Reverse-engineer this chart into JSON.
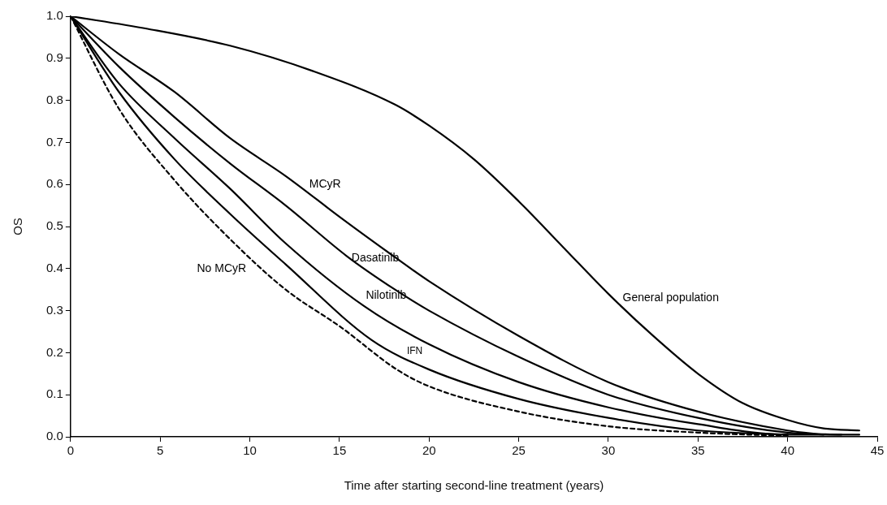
{
  "chart_data": {
    "type": "line",
    "xlabel": "Time after starting second-line treatment (years)",
    "ylabel": "OS",
    "xlim": [
      0,
      45
    ],
    "ylim": [
      0,
      1
    ],
    "xticks": [
      0,
      5,
      10,
      15,
      20,
      25,
      30,
      35,
      40,
      45
    ],
    "yticks": [
      {
        "value": 0,
        "label": "0.0"
      },
      0.1,
      0.2,
      0.3,
      0.4,
      0.5,
      0.6,
      0.7,
      0.8,
      0.9,
      {
        "value": 1,
        "label": "1.0"
      }
    ],
    "grid": false,
    "legend": false,
    "marker": "none",
    "series": [
      {
        "name": "General population",
        "color": "#000000",
        "line_style": "solid",
        "x": [
          0,
          4.3,
          8.9,
          13.5,
          18.1,
          20,
          22.5,
          25,
          27.5,
          30,
          32.5,
          35,
          37.5,
          40,
          42,
          44
        ],
        "values": [
          1,
          0.97,
          0.93,
          0.87,
          0.79,
          0.74,
          0.66,
          0.56,
          0.45,
          0.34,
          0.24,
          0.15,
          0.08,
          0.04,
          0.02,
          0.015
        ]
      },
      {
        "name": "MCyR",
        "color": "#000000",
        "line_style": "solid",
        "x": [
          0,
          2.7,
          5.8,
          8.9,
          12,
          15.1,
          18,
          20,
          25,
          30,
          35,
          40,
          42
        ],
        "values": [
          1,
          0.91,
          0.82,
          0.71,
          0.62,
          0.52,
          0.43,
          0.37,
          0.24,
          0.13,
          0.06,
          0.015,
          0.005
        ]
      },
      {
        "name": "Dasatinib",
        "color": "#000000",
        "line_style": "solid",
        "x": [
          0,
          2.7,
          5.8,
          8.9,
          12,
          15.4,
          18.1,
          20,
          25,
          30,
          35,
          40,
          43
        ],
        "values": [
          1,
          0.88,
          0.76,
          0.65,
          0.55,
          0.43,
          0.35,
          0.3,
          0.19,
          0.1,
          0.045,
          0.01,
          0.005
        ]
      },
      {
        "name": "Nilotinib",
        "color": "#000000",
        "line_style": "solid",
        "x": [
          0,
          2.7,
          5.8,
          8.9,
          12,
          16.4,
          20,
          25,
          30,
          35,
          40,
          44
        ],
        "values": [
          1,
          0.84,
          0.71,
          0.59,
          0.46,
          0.31,
          0.22,
          0.13,
          0.07,
          0.03,
          0.005,
          0.005
        ]
      },
      {
        "name": "IFN",
        "color": "#000000",
        "line_style": "solid",
        "x": [
          0,
          2.7,
          5.8,
          8.9,
          12,
          16.8,
          20,
          25,
          30,
          35,
          40
        ],
        "values": [
          1,
          0.82,
          0.66,
          0.53,
          0.41,
          0.23,
          0.16,
          0.09,
          0.045,
          0.015,
          0.005
        ]
      },
      {
        "name": "No MCyR",
        "color": "#000000",
        "line_style": "dashed",
        "x": [
          0,
          2.7,
          5.8,
          8.9,
          12,
          15.1,
          18.2,
          20,
          25,
          30,
          35,
          40
        ],
        "values": [
          1,
          0.78,
          0.61,
          0.47,
          0.35,
          0.26,
          0.16,
          0.12,
          0.06,
          0.025,
          0.01,
          0.002
        ]
      }
    ]
  }
}
